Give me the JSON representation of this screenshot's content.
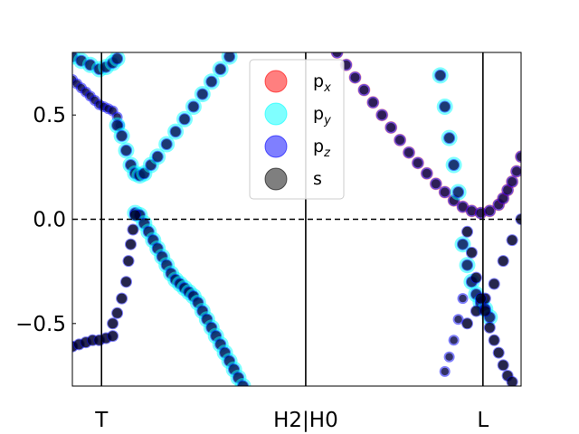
{
  "chart_data": {
    "type": "scatter",
    "title": "",
    "xlabel": "",
    "ylabel": "",
    "xlim": [
      0,
      1
    ],
    "ylim": [
      -0.8,
      0.8
    ],
    "grid": false,
    "legend_placement": "top-center",
    "fermi_level": 0.0,
    "kpoints": [
      {
        "label": "T",
        "x": 0.065
      },
      {
        "label": "H2|H0",
        "x": 0.52
      },
      {
        "label": "L",
        "x": 0.915
      }
    ],
    "yticks": [
      {
        "value": 0.5,
        "label": "0.5"
      },
      {
        "value": 0.0,
        "label": "0.0"
      },
      {
        "value": -0.5,
        "label": "−0.5"
      }
    ],
    "series": [
      {
        "name": "p_x",
        "label_base": "p",
        "label_sub": "x",
        "color": "#ff0000",
        "alpha": 0.5
      },
      {
        "name": "p_y",
        "label_base": "p",
        "label_sub": "y",
        "color": "#00ffff",
        "alpha": 0.5
      },
      {
        "name": "p_z",
        "label_base": "p",
        "label_sub": "z",
        "color": "#0000ff",
        "alpha": 0.5
      },
      {
        "name": "s",
        "label_base": "s",
        "label_sub": "",
        "color": "#000000",
        "alpha": 0.5
      }
    ],
    "bands": [
      {
        "id": "band-cyan-top-left",
        "char": "py",
        "points": [
          [
            0.0,
            0.78
          ],
          [
            0.02,
            0.76
          ],
          [
            0.04,
            0.74
          ],
          [
            0.06,
            0.72
          ],
          [
            0.075,
            0.73
          ],
          [
            0.09,
            0.75
          ],
          [
            0.1,
            0.77
          ]
        ]
      },
      {
        "id": "band-pz-left-upper",
        "char": "pz",
        "points": [
          [
            0.0,
            0.67
          ],
          [
            0.01,
            0.65
          ],
          [
            0.02,
            0.63
          ],
          [
            0.03,
            0.61
          ],
          [
            0.04,
            0.59
          ],
          [
            0.05,
            0.57
          ],
          [
            0.06,
            0.55
          ],
          [
            0.07,
            0.54
          ],
          [
            0.08,
            0.53
          ],
          [
            0.09,
            0.52
          ],
          [
            0.1,
            0.49
          ],
          [
            0.105,
            0.45
          ]
        ]
      },
      {
        "id": "band-valley-upper",
        "char": "mix",
        "points": [
          [
            0.1,
            0.45
          ],
          [
            0.11,
            0.4
          ],
          [
            0.12,
            0.33
          ],
          [
            0.13,
            0.26
          ],
          [
            0.14,
            0.22
          ],
          [
            0.15,
            0.21
          ],
          [
            0.16,
            0.22
          ],
          [
            0.175,
            0.26
          ],
          [
            0.19,
            0.3
          ],
          [
            0.21,
            0.36
          ],
          [
            0.23,
            0.42
          ],
          [
            0.25,
            0.48
          ],
          [
            0.27,
            0.54
          ],
          [
            0.29,
            0.6
          ],
          [
            0.31,
            0.66
          ],
          [
            0.33,
            0.72
          ],
          [
            0.35,
            0.78
          ]
        ]
      },
      {
        "id": "band-py-descending",
        "char": "py",
        "points": [
          [
            0.14,
            0.03
          ],
          [
            0.15,
            0.02
          ],
          [
            0.16,
            -0.02
          ],
          [
            0.17,
            -0.06
          ],
          [
            0.18,
            -0.1
          ],
          [
            0.19,
            -0.14
          ],
          [
            0.2,
            -0.18
          ],
          [
            0.21,
            -0.22
          ],
          [
            0.22,
            -0.26
          ],
          [
            0.23,
            -0.29
          ],
          [
            0.24,
            -0.31
          ],
          [
            0.25,
            -0.33
          ],
          [
            0.26,
            -0.35
          ],
          [
            0.27,
            -0.37
          ],
          [
            0.28,
            -0.4
          ],
          [
            0.29,
            -0.44
          ],
          [
            0.3,
            -0.48
          ],
          [
            0.31,
            -0.52
          ],
          [
            0.32,
            -0.56
          ],
          [
            0.33,
            -0.6
          ],
          [
            0.34,
            -0.64
          ],
          [
            0.35,
            -0.68
          ],
          [
            0.36,
            -0.72
          ],
          [
            0.37,
            -0.76
          ],
          [
            0.38,
            -0.8
          ]
        ]
      },
      {
        "id": "band-s-left-rise",
        "char": "s",
        "points": [
          [
            0.09,
            -0.5
          ],
          [
            0.1,
            -0.45
          ],
          [
            0.11,
            -0.38
          ],
          [
            0.12,
            -0.3
          ],
          [
            0.125,
            -0.2
          ],
          [
            0.13,
            -0.12
          ],
          [
            0.135,
            -0.05
          ],
          [
            0.14,
            0.02
          ]
        ]
      },
      {
        "id": "band-s-left-flat",
        "char": "s",
        "points": [
          [
            0.0,
            -0.61
          ],
          [
            0.015,
            -0.6
          ],
          [
            0.03,
            -0.59
          ],
          [
            0.045,
            -0.58
          ],
          [
            0.06,
            -0.58
          ],
          [
            0.075,
            -0.57
          ],
          [
            0.09,
            -0.56
          ]
        ]
      },
      {
        "id": "band-pz-big-arc",
        "char": "pzline",
        "points": [
          [
            0.59,
            0.8
          ],
          [
            0.61,
            0.74
          ],
          [
            0.63,
            0.68
          ],
          [
            0.65,
            0.62
          ],
          [
            0.67,
            0.56
          ],
          [
            0.69,
            0.5
          ],
          [
            0.71,
            0.44
          ],
          [
            0.73,
            0.38
          ],
          [
            0.75,
            0.32
          ],
          [
            0.77,
            0.27
          ],
          [
            0.79,
            0.22
          ],
          [
            0.81,
            0.17
          ],
          [
            0.83,
            0.13
          ],
          [
            0.85,
            0.09
          ],
          [
            0.87,
            0.06
          ],
          [
            0.89,
            0.04
          ],
          [
            0.91,
            0.03
          ],
          [
            0.93,
            0.04
          ],
          [
            0.95,
            0.07
          ],
          [
            0.96,
            0.1
          ],
          [
            0.97,
            0.14
          ],
          [
            0.98,
            0.18
          ],
          [
            0.99,
            0.23
          ],
          [
            1.0,
            0.3
          ]
        ]
      },
      {
        "id": "band-py-L-drop",
        "char": "py",
        "points": [
          [
            0.82,
            0.69
          ],
          [
            0.83,
            0.54
          ],
          [
            0.84,
            0.39
          ],
          [
            0.85,
            0.26
          ],
          [
            0.86,
            0.13
          ],
          [
            0.87,
            -0.12
          ],
          [
            0.88,
            -0.22
          ],
          [
            0.89,
            -0.3
          ],
          [
            0.9,
            -0.36
          ],
          [
            0.91,
            -0.4
          ],
          [
            0.92,
            -0.43
          ],
          [
            0.93,
            -0.47
          ]
        ]
      },
      {
        "id": "band-s-L-up",
        "char": "s",
        "points": [
          [
            0.88,
            -0.5
          ],
          [
            0.9,
            -0.44
          ],
          [
            0.92,
            -0.38
          ],
          [
            0.94,
            -0.31
          ],
          [
            0.96,
            -0.2
          ],
          [
            0.98,
            -0.1
          ],
          [
            1.0,
            0.0
          ]
        ]
      },
      {
        "id": "band-s-L-down",
        "char": "s",
        "points": [
          [
            0.88,
            -0.06
          ],
          [
            0.89,
            -0.16
          ],
          [
            0.9,
            -0.28
          ],
          [
            0.91,
            -0.38
          ],
          [
            0.92,
            -0.44
          ],
          [
            0.93,
            -0.52
          ],
          [
            0.94,
            -0.58
          ],
          [
            0.95,
            -0.64
          ],
          [
            0.96,
            -0.7
          ],
          [
            0.97,
            -0.75
          ],
          [
            0.98,
            -0.78
          ]
        ]
      },
      {
        "id": "band-pz-L-lower",
        "char": "pz",
        "points": [
          [
            0.83,
            -0.73
          ],
          [
            0.84,
            -0.66
          ],
          [
            0.85,
            -0.58
          ],
          [
            0.86,
            -0.48
          ],
          [
            0.87,
            -0.38
          ]
        ]
      }
    ]
  }
}
